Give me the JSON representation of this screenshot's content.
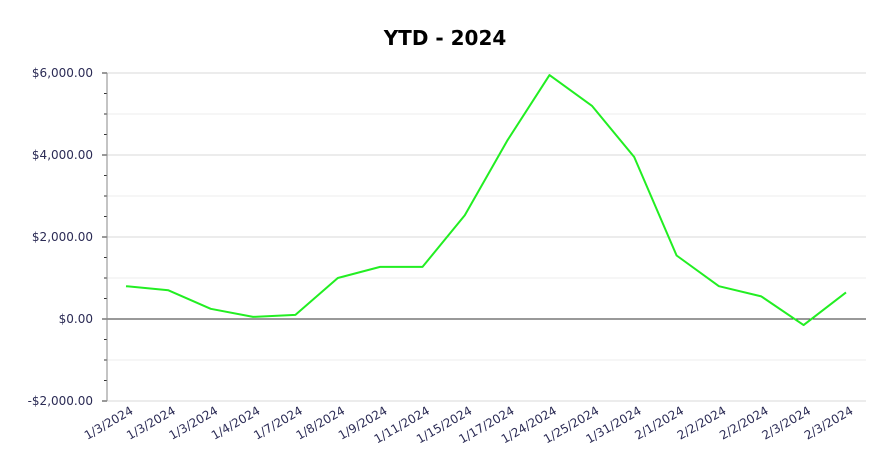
{
  "chart_data": {
    "type": "line",
    "title": "YTD - 2024",
    "xlabel": "",
    "ylabel": "",
    "ylim": [
      -2000,
      6000
    ],
    "yticks": [
      {
        "value": 6000,
        "label": "$6,000.00"
      },
      {
        "value": 4000,
        "label": "$4,000.00"
      },
      {
        "value": 2000,
        "label": "$2,000.00"
      },
      {
        "value": 0,
        "label": "$0.00"
      },
      {
        "value": -2000,
        "label": "-$2,000.00"
      }
    ],
    "categories": [
      "1/3/2024",
      "1/3/2024",
      "1/3/2024",
      "1/4/2024",
      "1/7/2024",
      "1/8/2024",
      "1/9/2024",
      "1/11/2024",
      "1/15/2024",
      "1/17/2024",
      "1/24/2024",
      "1/25/2024",
      "1/31/2024",
      "2/1/2024",
      "2/2/2024",
      "2/2/2024",
      "2/3/2024",
      "2/3/2024"
    ],
    "series": [
      {
        "color": "#22ee22",
        "values": [
          800,
          700,
          250,
          50,
          100,
          1000,
          1270,
          1270,
          2530,
          4350,
          5950,
          5200,
          3950,
          1550,
          800,
          550,
          -150,
          650
        ]
      }
    ],
    "grid": true
  }
}
